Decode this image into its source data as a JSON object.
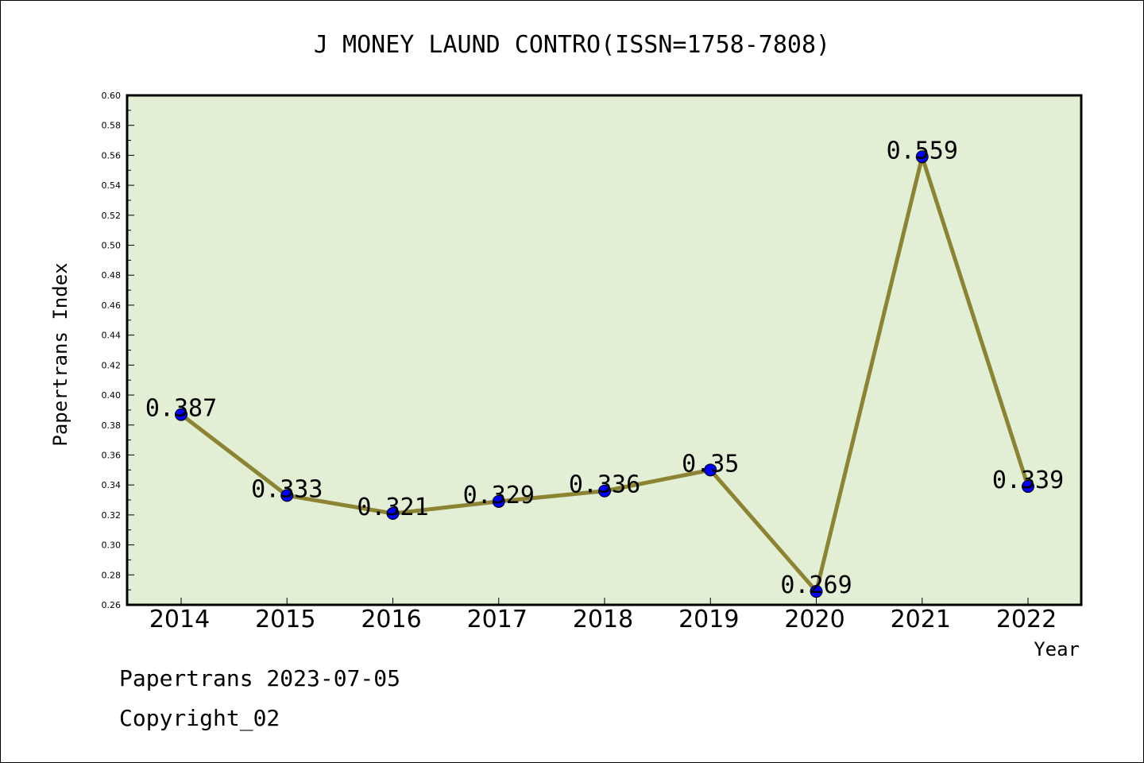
{
  "chart_data": {
    "type": "line",
    "title": "J MONEY LAUND CONTRO(ISSN=1758-7808)",
    "xlabel": "Year",
    "ylabel": "Papertrans Index",
    "x": [
      "2014",
      "2015",
      "2016",
      "2017",
      "2018",
      "2019",
      "2020",
      "2021",
      "2022"
    ],
    "series": [
      {
        "values": [
          0.387,
          0.333,
          0.321,
          0.329,
          0.336,
          0.35,
          0.269,
          0.559,
          0.339
        ],
        "data_labels": [
          "0.387",
          "0.333",
          "0.321",
          "0.329",
          "0.336",
          "0.35",
          "0.269",
          "0.559",
          "0.339"
        ],
        "line_color": "#8c8432",
        "marker_color": "#0000ff"
      }
    ],
    "ylim": [
      0.26,
      0.6
    ],
    "yticks": [
      "0.26",
      "0.28",
      "0.30",
      "0.32",
      "0.34",
      "0.36",
      "0.38",
      "0.40",
      "0.42",
      "0.44",
      "0.46",
      "0.48",
      "0.50",
      "0.52",
      "0.54",
      "0.56",
      "0.58",
      "0.60"
    ],
    "grid": false,
    "plot_background": "#e2efd5"
  },
  "footer": {
    "line1": "Papertrans 2023-07-05",
    "line2": "Copyright_02"
  }
}
